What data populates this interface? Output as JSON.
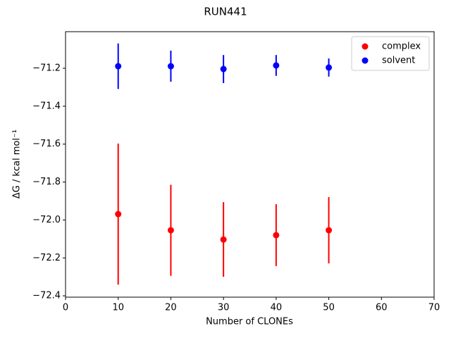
{
  "chart_data": {
    "type": "errorbar",
    "title": "RUN441",
    "xlabel": "Number of CLONEs",
    "ylabel": "ΔG / kcal mol⁻¹",
    "x": [
      10,
      20,
      30,
      40,
      50
    ],
    "series": [
      {
        "name": "complex",
        "color": "#ff0000",
        "values": [
          -71.969,
          -72.054,
          -72.103,
          -72.08,
          -72.054
        ],
        "errors": [
          0.372,
          0.24,
          0.197,
          0.163,
          0.175
        ]
      },
      {
        "name": "solvent",
        "color": "#0000ff",
        "values": [
          -71.189,
          -71.189,
          -71.204,
          -71.185,
          -71.196
        ],
        "errors": [
          0.12,
          0.082,
          0.074,
          0.055,
          0.048
        ]
      }
    ],
    "xlim": [
      0,
      70
    ],
    "xticks": [
      0,
      10,
      20,
      30,
      40,
      50,
      60,
      70
    ],
    "ylim": [
      -72.407,
      -71.007
    ],
    "yticks": [
      {
        "value": -71.2,
        "label": "−71.2"
      },
      {
        "value": -71.4,
        "label": "−71.4"
      },
      {
        "value": -71.6,
        "label": "−71.6"
      },
      {
        "value": -71.8,
        "label": "−71.8"
      },
      {
        "value": -72.0,
        "label": "−72.0"
      },
      {
        "value": -72.2,
        "label": "−72.2"
      },
      {
        "value": -72.4,
        "label": "−72.4"
      }
    ],
    "legend": "upper right",
    "grid": false
  }
}
